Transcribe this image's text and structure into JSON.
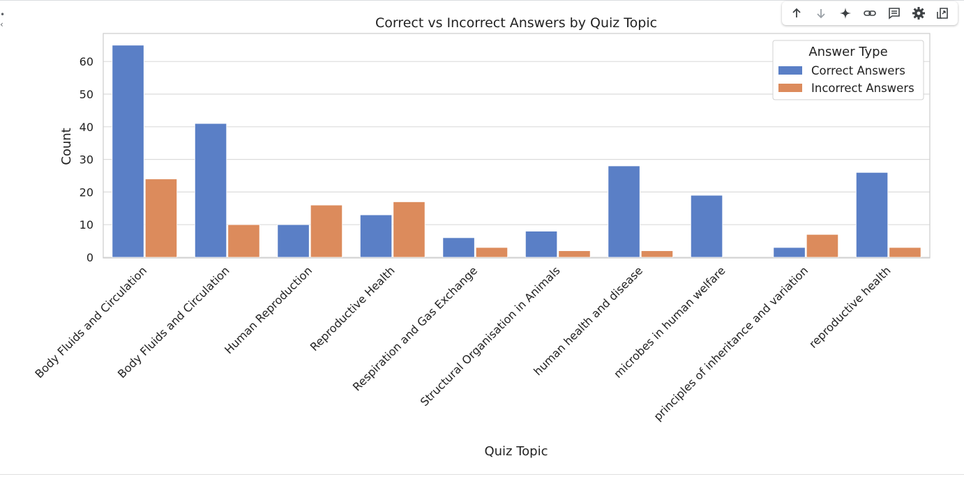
{
  "toolbar": {
    "icons": [
      "arrow-up-icon",
      "arrow-down-icon",
      "sparkle-icon",
      "link-icon",
      "comment-icon",
      "gear-icon",
      "mirror-cell-icon"
    ]
  },
  "colors": {
    "correct": "#5a7fc6",
    "incorrect": "#dc8b5c",
    "grid": "#dcdcdc",
    "frame": "#cccccc",
    "text": "#222222"
  },
  "chart_data": {
    "type": "bar",
    "title": "Correct vs Incorrect Answers by Quiz Topic",
    "xlabel": "Quiz Topic",
    "ylabel": "Count",
    "ylim": [
      0,
      69
    ],
    "yticks": [
      0,
      10,
      20,
      30,
      40,
      50,
      60
    ],
    "grid": true,
    "legend": {
      "title": "Answer Type",
      "placement": "top-right"
    },
    "categories": [
      "Body Fluids and Circulation",
      "Body Fluids and Circulation ",
      "Human Reproduction",
      "Reproductive Health",
      "Respiration and Gas Exchange",
      "Structural Organisation in Animals",
      "human health and disease",
      "microbes in human welfare",
      "principles of inheritance and variation",
      "reproductive health"
    ],
    "series": [
      {
        "name": "Correct Answers",
        "values": [
          65,
          41,
          10,
          13,
          6,
          8,
          28,
          19,
          3,
          26
        ]
      },
      {
        "name": "Incorrect Answers",
        "values": [
          24,
          10,
          16,
          17,
          3,
          2,
          2,
          0,
          7,
          3
        ]
      }
    ]
  }
}
